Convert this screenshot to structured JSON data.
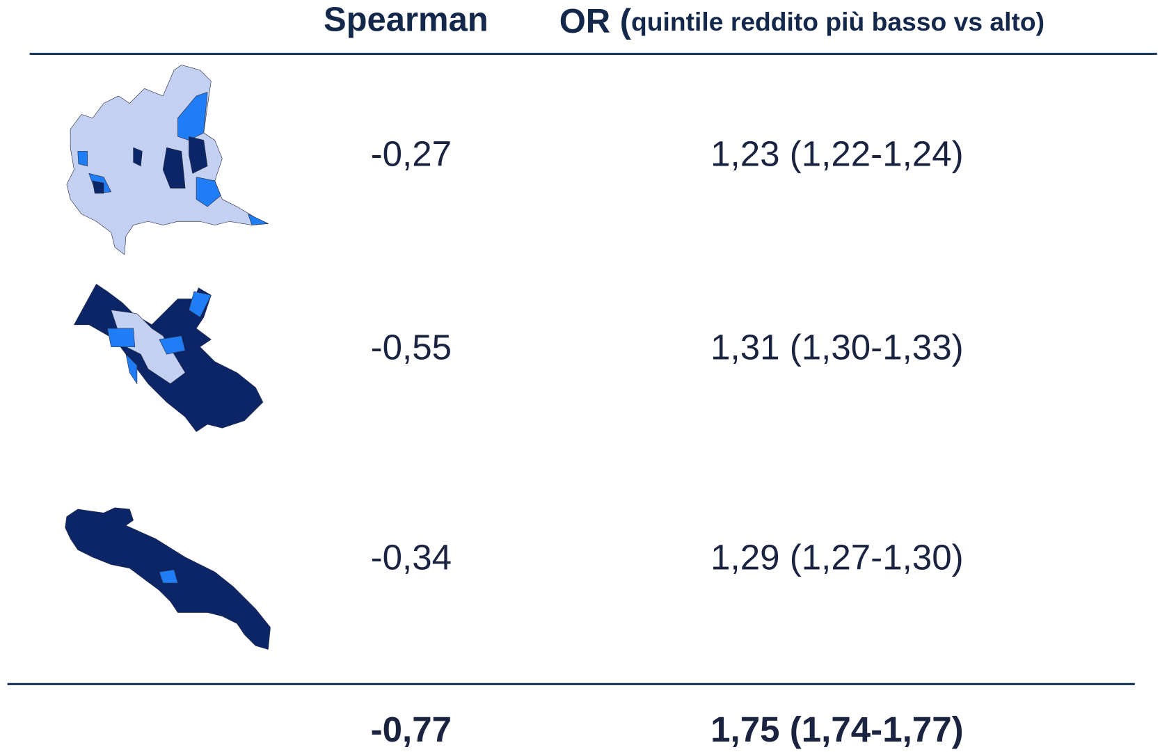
{
  "header": {
    "spearman": "Spearman",
    "or_prefix": "OR (",
    "or_detail": "quintile reddito più basso vs alto)"
  },
  "rows": [
    {
      "spearman": "-0,27",
      "or": "1,23 (1,22-1,24)"
    },
    {
      "spearman": "-0,55",
      "or": "1,31 (1,30-1,33)"
    },
    {
      "spearman": "-0,34",
      "or": "1,29 (1,27-1,30)"
    }
  ],
  "total": {
    "spearman": "-0,77",
    "or": "1,75 (1,74-1,77)"
  }
}
